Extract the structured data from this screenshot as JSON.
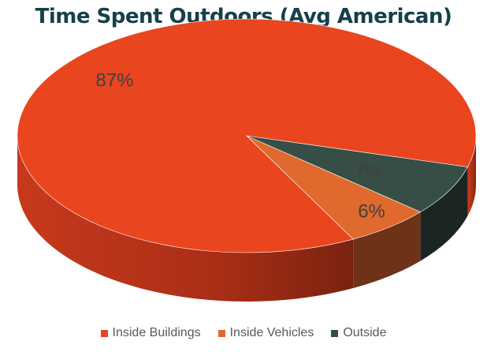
{
  "chart_data": {
    "type": "pie",
    "title": "Time Spent Outdoors (Avg American)",
    "slices": [
      {
        "name": "Inside Buildings",
        "value": 87,
        "label": "87%",
        "color": "#e9451f",
        "side_color": "#b5331a"
      },
      {
        "name": "Inside Vehicles",
        "value": 6,
        "label": "6%",
        "color": "#e0692e",
        "side_color": "#6e3218"
      },
      {
        "name": "Outside",
        "value": 7,
        "label": "7%",
        "color": "#364e46",
        "side_color": "#1b2622"
      }
    ],
    "legend_position": "bottom",
    "style": "3d"
  }
}
